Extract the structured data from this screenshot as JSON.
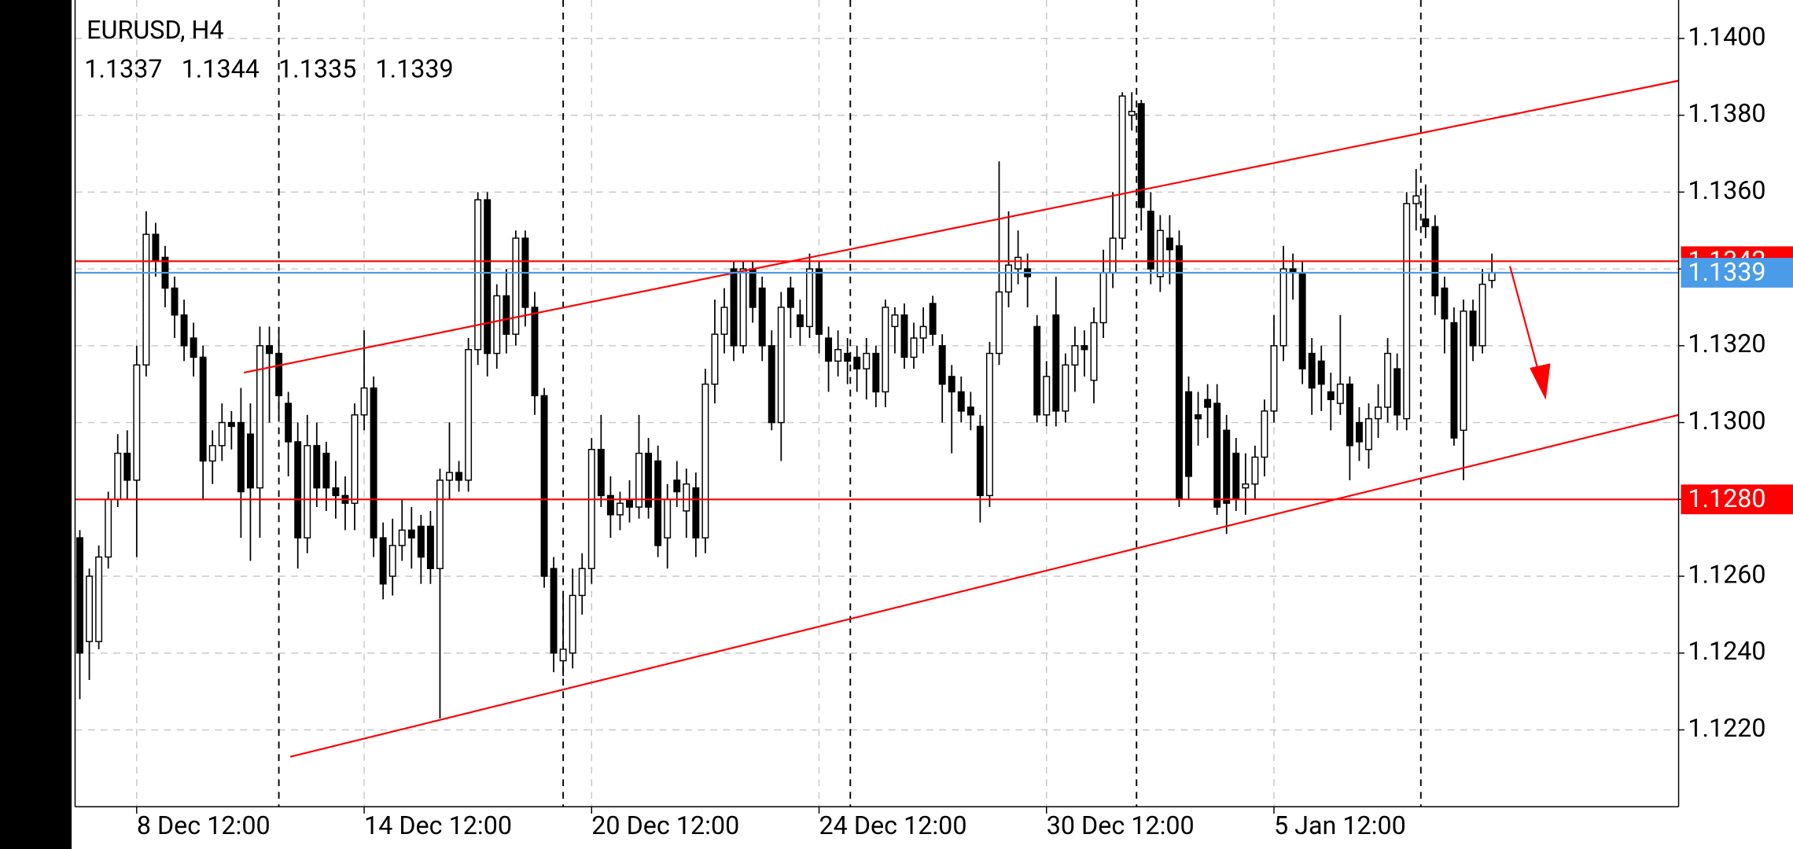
{
  "chart_data": {
    "type": "candlestick",
    "title": "EURUSD, H4",
    "last_ohlc": [
      1.1337,
      1.1344,
      1.1335,
      1.1339
    ],
    "open": [
      1.127,
      1.1243,
      1.1243,
      1.1265,
      1.128,
      1.1292,
      1.1285,
      1.1315,
      1.1349,
      1.1343,
      1.1335,
      1.1328,
      1.1322,
      1.1317,
      1.129,
      1.1294,
      1.13,
      1.13,
      1.1297,
      1.1283,
      1.132,
      1.1318,
      1.1305,
      1.1295,
      1.127,
      1.1294,
      1.1292,
      1.1283,
      1.1281,
      1.1279,
      1.1302,
      1.1309,
      1.127,
      1.126,
      1.1268,
      1.1272,
      1.1273,
      1.1273,
      1.1262,
      1.1285,
      1.1287,
      1.1285,
      1.1319,
      1.1358,
      1.1318,
      1.1333,
      1.1323,
      1.1348,
      1.133,
      1.1307,
      1.1262,
      1.1238,
      1.124,
      1.1255,
      1.1262,
      1.1293,
      1.1281,
      1.1276,
      1.128,
      1.1278,
      1.1292,
      1.129,
      1.127,
      1.1285,
      1.1277,
      1.1283,
      1.127,
      1.131,
      1.1323,
      1.134,
      1.132,
      1.134,
      1.1335,
      1.132,
      1.13,
      1.1335,
      1.1328,
      1.1325,
      1.134,
      1.1322,
      1.1316,
      1.1318,
      1.1317,
      1.1314,
      1.1318,
      1.1308,
      1.1325,
      1.1328,
      1.1317,
      1.1322,
      1.1331,
      1.132,
      1.1312,
      1.1308,
      1.1304,
      1.1299,
      1.1281,
      1.1318,
      1.1334,
      1.134,
      1.134,
      1.1325,
      1.1302,
      1.1328,
      1.1303,
      1.1315,
      1.132,
      1.1311,
      1.1326,
      1.1339,
      1.1348,
      1.138,
      1.1383,
      1.1355,
      1.1338,
      1.1348,
      1.1346,
      1.1308,
      1.1302,
      1.1306,
      1.1305,
      1.1298,
      1.1292,
      1.1283,
      1.1284,
      1.1291,
      1.1303,
      1.132,
      1.134,
      1.1339,
      1.1318,
      1.1316,
      1.1308,
      1.1305,
      1.131,
      1.13,
      1.1293,
      1.1301,
      1.1304,
      1.1314,
      1.1301,
      1.1357,
      1.1353,
      1.1351,
      1.1335,
      1.1326,
      1.1298,
      1.1329,
      1.132,
      1.1337
    ],
    "high": [
      1.1272,
      1.1262,
      1.1268,
      1.1282,
      1.1297,
      1.1298,
      1.132,
      1.1355,
      1.1352,
      1.1346,
      1.1338,
      1.1332,
      1.1326,
      1.132,
      1.1298,
      1.1305,
      1.1303,
      1.1309,
      1.1305,
      1.1325,
      1.1325,
      1.1324,
      1.1308,
      1.13,
      1.1302,
      1.13,
      1.1295,
      1.129,
      1.1286,
      1.1305,
      1.1324,
      1.1312,
      1.1274,
      1.1275,
      1.128,
      1.1278,
      1.1276,
      1.1277,
      1.1288,
      1.13,
      1.129,
      1.1322,
      1.136,
      1.136,
      1.1336,
      1.134,
      1.135,
      1.135,
      1.1334,
      1.1309,
      1.1265,
      1.1255,
      1.1262,
      1.1266,
      1.1296,
      1.1302,
      1.1286,
      1.1282,
      1.1285,
      1.1302,
      1.1296,
      1.1294,
      1.1284,
      1.129,
      1.1288,
      1.1287,
      1.1314,
      1.1332,
      1.1335,
      1.1342,
      1.1342,
      1.1342,
      1.1338,
      1.1324,
      1.1334,
      1.1338,
      1.1332,
      1.1344,
      1.1342,
      1.1325,
      1.1324,
      1.1322,
      1.132,
      1.1322,
      1.132,
      1.1332,
      1.133,
      1.1331,
      1.1326,
      1.133,
      1.1333,
      1.1323,
      1.1315,
      1.1312,
      1.1308,
      1.1302,
      1.1321,
      1.1368,
      1.1355,
      1.135,
      1.1344,
      1.1328,
      1.1316,
      1.1338,
      1.1318,
      1.1325,
      1.1324,
      1.133,
      1.1345,
      1.136,
      1.1386,
      1.1386,
      1.1384,
      1.136,
      1.1354,
      1.1354,
      1.135,
      1.1312,
      1.1308,
      1.131,
      1.131,
      1.1302,
      1.1296,
      1.1292,
      1.1294,
      1.1306,
      1.1328,
      1.1346,
      1.1344,
      1.1342,
      1.1322,
      1.132,
      1.1313,
      1.1328,
      1.1312,
      1.1304,
      1.1305,
      1.131,
      1.1322,
      1.1318,
      1.136,
      1.1366,
      1.1362,
      1.1354,
      1.1338,
      1.133,
      1.1332,
      1.1332,
      1.134,
      1.1344
    ],
    "low": [
      1.1228,
      1.1233,
      1.1241,
      1.1262,
      1.1278,
      1.128,
      1.1265,
      1.1312,
      1.1338,
      1.133,
      1.1322,
      1.1316,
      1.1312,
      1.128,
      1.1284,
      1.129,
      1.1293,
      1.127,
      1.1264,
      1.127,
      1.13,
      1.1302,
      1.1286,
      1.1262,
      1.1266,
      1.1278,
      1.1277,
      1.1275,
      1.1272,
      1.1272,
      1.1298,
      1.1265,
      1.1254,
      1.1255,
      1.1264,
      1.1262,
      1.1258,
      1.1258,
      1.1223,
      1.128,
      1.1282,
      1.1282,
      1.1315,
      1.1312,
      1.1314,
      1.1318,
      1.132,
      1.1325,
      1.1302,
      1.1257,
      1.1235,
      1.1234,
      1.1236,
      1.125,
      1.1258,
      1.1278,
      1.127,
      1.1272,
      1.1274,
      1.1275,
      1.1275,
      1.1265,
      1.1262,
      1.1278,
      1.127,
      1.1265,
      1.1266,
      1.1305,
      1.1318,
      1.1316,
      1.1318,
      1.1326,
      1.1316,
      1.1298,
      1.129,
      1.1322,
      1.132,
      1.1322,
      1.1318,
      1.1308,
      1.1312,
      1.131,
      1.1308,
      1.1306,
      1.1304,
      1.1304,
      1.1318,
      1.1314,
      1.1314,
      1.1318,
      1.132,
      1.13,
      1.1292,
      1.13,
      1.1298,
      1.1274,
      1.1278,
      1.1315,
      1.133,
      1.1336,
      1.133,
      1.13,
      1.1299,
      1.1299,
      1.13,
      1.1308,
      1.1312,
      1.1305,
      1.1322,
      1.1335,
      1.1345,
      1.1376,
      1.135,
      1.1336,
      1.1334,
      1.1336,
      1.1278,
      1.128,
      1.1294,
      1.1296,
      1.1276,
      1.1271,
      1.1277,
      1.1276,
      1.128,
      1.1286,
      1.13,
      1.1316,
      1.1332,
      1.131,
      1.1302,
      1.1303,
      1.1298,
      1.1302,
      1.1285,
      1.129,
      1.1288,
      1.1296,
      1.13,
      1.1298,
      1.1298,
      1.135,
      1.1348,
      1.1328,
      1.1318,
      1.1294,
      1.1285,
      1.1316,
      1.1318,
      1.1335
    ],
    "close": [
      1.124,
      1.126,
      1.1265,
      1.128,
      1.1292,
      1.1285,
      1.1315,
      1.1349,
      1.1342,
      1.1335,
      1.1328,
      1.132,
      1.1317,
      1.129,
      1.1294,
      1.13,
      1.1299,
      1.1282,
      1.1283,
      1.132,
      1.1318,
      1.1307,
      1.1295,
      1.127,
      1.1294,
      1.1283,
      1.1283,
      1.1281,
      1.1279,
      1.1302,
      1.1309,
      1.127,
      1.1258,
      1.1268,
      1.1272,
      1.127,
      1.1265,
      1.1262,
      1.1285,
      1.1287,
      1.1285,
      1.1319,
      1.1358,
      1.1318,
      1.1333,
      1.1323,
      1.1348,
      1.133,
      1.1307,
      1.126,
      1.124,
      1.1241,
      1.1255,
      1.1262,
      1.1293,
      1.1281,
      1.1276,
      1.1279,
      1.1278,
      1.1292,
      1.1278,
      1.1268,
      1.128,
      1.1282,
      1.1284,
      1.127,
      1.131,
      1.1323,
      1.133,
      1.132,
      1.134,
      1.133,
      1.132,
      1.13,
      1.133,
      1.133,
      1.1325,
      1.134,
      1.1323,
      1.1316,
      1.1319,
      1.1316,
      1.1314,
      1.1318,
      1.1308,
      1.133,
      1.1328,
      1.1317,
      1.1322,
      1.1325,
      1.1323,
      1.131,
      1.1308,
      1.1303,
      1.1302,
      1.1281,
      1.1318,
      1.1334,
      1.1341,
      1.1343,
      1.1338,
      1.1302,
      1.1312,
      1.1303,
      1.1315,
      1.132,
      1.1319,
      1.1326,
      1.1339,
      1.1348,
      1.1385,
      1.1381,
      1.1356,
      1.134,
      1.135,
      1.1345,
      1.128,
      1.1286,
      1.1301,
      1.1304,
      1.1278,
      1.1279,
      1.128,
      1.1284,
      1.1291,
      1.1303,
      1.132,
      1.134,
      1.1339,
      1.1314,
      1.1309,
      1.131,
      1.1306,
      1.131,
      1.1294,
      1.1295,
      1.1301,
      1.1304,
      1.1318,
      1.1302,
      1.1357,
      1.1359,
      1.1351,
      1.1333,
      1.1327,
      1.1296,
      1.1329,
      1.132,
      1.1336,
      1.1339
    ],
    "up_color": "#ffffff",
    "down_color": "#000000",
    "xlim": [
      -0.5,
      168.7
    ],
    "xticks": [
      {
        "value": 6,
        "label": "8 Dec 12:00"
      },
      {
        "value": 30,
        "label": "14 Dec 12:00"
      },
      {
        "value": 54,
        "label": "20 Dec 12:00"
      },
      {
        "value": 78,
        "label": "24 Dec 12:00"
      },
      {
        "value": 102,
        "label": "30 Dec 12:00"
      },
      {
        "value": 126,
        "label": "5 Jan 12:00"
      }
    ],
    "ylim": [
      1.12,
      1.141
    ],
    "yticks": [
      {
        "value": 1.122,
        "label": "1.1220"
      },
      {
        "value": 1.124,
        "label": "1.1240"
      },
      {
        "value": 1.126,
        "label": "1.1260"
      },
      {
        "value": 1.128,
        "label": "1.1280"
      },
      {
        "value": 1.13,
        "label": "1.1300"
      },
      {
        "value": 1.132,
        "label": "1.1320"
      },
      {
        "value": 1.134,
        "label": "1.1340"
      },
      {
        "value": 1.136,
        "label": "1.1360"
      },
      {
        "value": 1.138,
        "label": "1.1380"
      },
      {
        "value": 1.14,
        "label": "1.1400"
      }
    ],
    "grid": true,
    "separators": [
      21,
      51,
      81.3,
      111.5,
      141.5
    ],
    "hlines": [
      {
        "value": 1.1342,
        "color": "#ff0000"
      },
      {
        "value": 1.128,
        "label": "1.1280",
        "color": "#ff0000"
      }
    ],
    "bid": {
      "value": 1.1339,
      "color": "#4a9be8"
    },
    "trendlines": [
      {
        "x": [
          17.3,
          168.7
        ],
        "y": [
          1.1313,
          1.1389
        ],
        "color": "#ff0000"
      },
      {
        "x": [
          22.2,
          168.7
        ],
        "y": [
          1.1213,
          1.1302
        ],
        "color": "#ff0000"
      }
    ]
  }
}
